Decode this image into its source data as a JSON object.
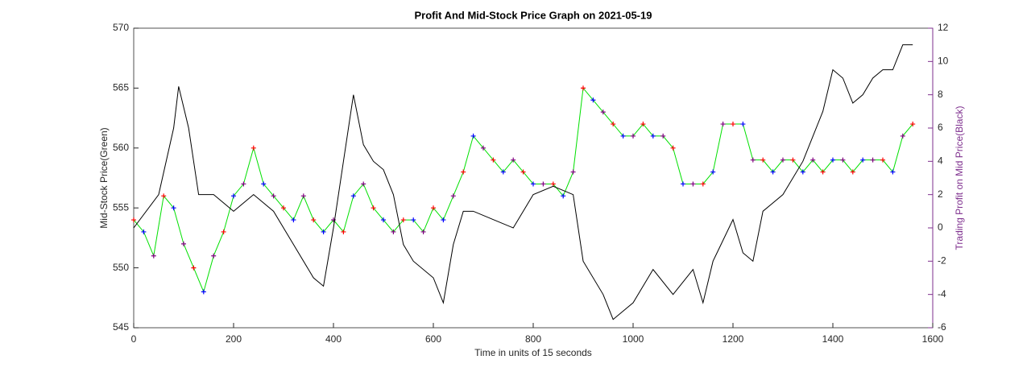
{
  "chart_data": {
    "type": "line",
    "title": "Profit And Mid-Stock Price Graph on 2021-05-19",
    "x_label": "Time in units of 15 seconds",
    "y_label": "Mid-Stock Price(Green)",
    "y2_label": "Trading Profit on Mid Price(Black)",
    "xlim": [
      0,
      1600
    ],
    "xticks": [
      0,
      200,
      400,
      600,
      800,
      1000,
      1200,
      1400,
      1600
    ],
    "ylim": [
      545,
      570
    ],
    "yticks": [
      545,
      550,
      555,
      560,
      565,
      570
    ],
    "y2lim": [
      -6,
      12
    ],
    "y2ticks": [
      -6,
      -4,
      -2,
      0,
      2,
      4,
      6,
      8,
      10,
      12
    ],
    "y2_color": "#7e2f8e",
    "series": [
      {
        "color": "#00e000",
        "marker_colors": [
          "#ff0000",
          "#0000ff",
          "#800080"
        ],
        "x": [
          0,
          20,
          40,
          60,
          80,
          100,
          120,
          140,
          160,
          180,
          200,
          220,
          240,
          260,
          280,
          300,
          320,
          340,
          360,
          380,
          400,
          420,
          440,
          460,
          480,
          500,
          520,
          540,
          560,
          580,
          600,
          620,
          640,
          660,
          680,
          700,
          720,
          740,
          760,
          780,
          800,
          820,
          840,
          860,
          880,
          900,
          920,
          940,
          960,
          980,
          1000,
          1020,
          1040,
          1060,
          1080,
          1100,
          1120,
          1140,
          1160,
          1180,
          1200,
          1220,
          1240,
          1260,
          1280,
          1300,
          1320,
          1340,
          1360,
          1380,
          1400,
          1420,
          1440,
          1460,
          1480,
          1500,
          1520,
          1540,
          1560
        ],
        "values": [
          554,
          553,
          551,
          556,
          555,
          552,
          550,
          548,
          551,
          553,
          556,
          557,
          560,
          557,
          556,
          555,
          554,
          556,
          554,
          553,
          554,
          553,
          556,
          557,
          555,
          554,
          553,
          554,
          554,
          553,
          555,
          554,
          556,
          558,
          561,
          560,
          559,
          558,
          559,
          558,
          557,
          557,
          557,
          556,
          558,
          565,
          564,
          563,
          562,
          561,
          561,
          562,
          561,
          561,
          560,
          557,
          557,
          557,
          558,
          562,
          562,
          562,
          559,
          559,
          558,
          559,
          559,
          558,
          559,
          558,
          559,
          559,
          558,
          559,
          559,
          559,
          558,
          561,
          562
        ]
      },
      {
        "color": "#000000",
        "axis": "y2",
        "x": [
          0,
          50,
          80,
          90,
          110,
          130,
          160,
          200,
          240,
          280,
          320,
          360,
          380,
          400,
          420,
          440,
          460,
          480,
          500,
          520,
          540,
          560,
          600,
          620,
          640,
          660,
          680,
          720,
          760,
          800,
          840,
          880,
          900,
          940,
          960,
          1000,
          1040,
          1080,
          1120,
          1140,
          1160,
          1200,
          1220,
          1240,
          1260,
          1300,
          1340,
          1360,
          1380,
          1400,
          1420,
          1440,
          1460,
          1480,
          1500,
          1520,
          1540,
          1560
        ],
        "values": [
          0,
          2,
          6,
          8.5,
          6,
          2,
          2,
          1,
          2,
          1,
          -1,
          -3,
          -3.5,
          0,
          4,
          8,
          5,
          4,
          3.5,
          2,
          -1,
          -2,
          -3,
          -4.5,
          -1,
          1,
          1,
          0.5,
          0,
          2,
          2.5,
          2,
          -2,
          -4,
          -5.5,
          -4.5,
          -2.5,
          -4,
          -2.5,
          -4.5,
          -2,
          0.5,
          -1.5,
          -2,
          1,
          2,
          4,
          5.5,
          7,
          9.5,
          9,
          7.5,
          8,
          9,
          9.5,
          9.5,
          11,
          11
        ]
      }
    ]
  }
}
